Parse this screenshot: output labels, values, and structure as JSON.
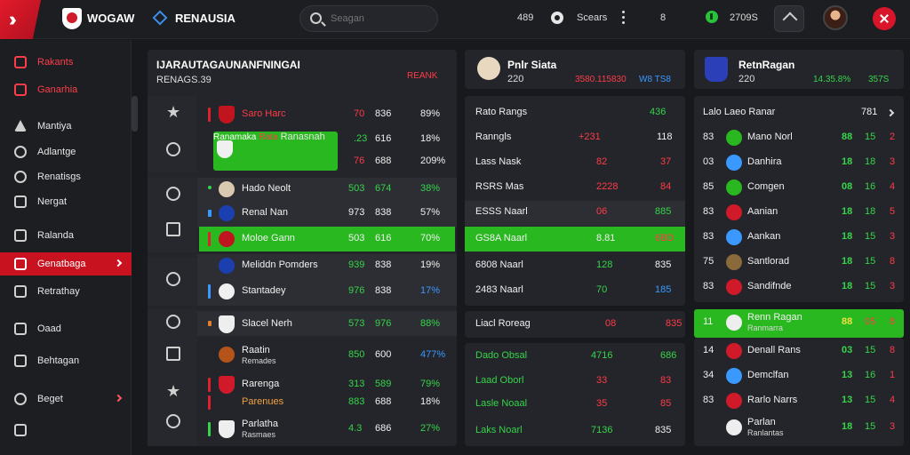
{
  "header": {
    "logo_text": "WOGAW",
    "nav_title": "RENAUSIA",
    "search_placeholder": "Seagan",
    "count": "489",
    "label": "Scears",
    "num": "8",
    "score": "2709S"
  },
  "sidebar": {
    "items": [
      {
        "label": "Rakants"
      },
      {
        "label": "Ganarhia"
      },
      {
        "label": "Mantiya"
      },
      {
        "label": "Adlantge"
      },
      {
        "label": "Renatisgs"
      },
      {
        "label": "Nergat"
      },
      {
        "label": "Ralanda"
      },
      {
        "label": "Genatbaga"
      },
      {
        "label": "Retrathay"
      },
      {
        "label": "Oaad"
      },
      {
        "label": "Behtagan"
      },
      {
        "label": "Beget"
      }
    ]
  },
  "main": {
    "title": "IJARAUTAGAUNANFNINGAI",
    "subtitle": "RENAGS.39",
    "tag": "REANK",
    "rows": [
      {
        "name": "Saro Harc",
        "a": "70",
        "b": "836",
        "c": "89%"
      },
      {
        "name": "Ranamaka",
        "line2": "Rata",
        "line3": "Ranasnah",
        "a": ".23",
        "b": "616",
        "c": "18%"
      },
      {
        "name": "",
        "a": "76",
        "b": "688",
        "c": "209%"
      },
      {
        "name": "Hado Neolt",
        "a": "503",
        "b": "674",
        "c": "38%"
      },
      {
        "name": "Renal Nan",
        "a": "973",
        "b": "838",
        "c": "57%"
      },
      {
        "name": "Moloe Gann",
        "a": "503",
        "b": "616",
        "c": "70%"
      },
      {
        "name": "Meliddn Pomders",
        "a": "939",
        "b": "838",
        "c": "19%"
      },
      {
        "name": "Stantadey",
        "a": "976",
        "b": "838",
        "c": "17%"
      },
      {
        "name": "Slacel Nerh",
        "a": "573",
        "b": "976",
        "c": "88%"
      },
      {
        "name": "Raatin",
        "sub": "Remades",
        "a": "850",
        "b": "600",
        "c": "477%"
      },
      {
        "name": "Rarenga",
        "a": "313",
        "b": "589",
        "c": "79%"
      },
      {
        "name": "Parenues",
        "a": "883",
        "b": "688",
        "c": "18%"
      },
      {
        "name": "Parlatha",
        "sub": "Rasmaes",
        "a": "4.3",
        "b": "686",
        "c": "27%"
      }
    ]
  },
  "middle": {
    "title": "Pnlr Siata",
    "sub": "220",
    "stat1": "3580.115830",
    "stat2": "W8 TS8",
    "rows": [
      {
        "name": "Rato Rangs",
        "a": "436",
        "b": ""
      },
      {
        "name": "Ranngls",
        "a": "+231",
        "b": "118"
      },
      {
        "name": "Lass  Nask",
        "a": "82",
        "b": "37"
      },
      {
        "name": "RSRS  Mas",
        "a": "2228",
        "b": "84"
      },
      {
        "name": "ESSS  Naarl",
        "a": "06",
        "b": "885"
      },
      {
        "name": "GS8A  Naarl",
        "a": "8.81",
        "b": "6BD"
      },
      {
        "name": "6808  Naarl",
        "a": "128",
        "b": "835"
      },
      {
        "name": "2483  Naarl",
        "a": "70",
        "b": "185"
      },
      {
        "name": "Liacl  Roreag",
        "a": "08",
        "b": "835"
      },
      {
        "name": "Dado  Obsal",
        "a": "4716",
        "b": "686"
      },
      {
        "name": "Laad  Oborl",
        "a": "33",
        "b": "83"
      },
      {
        "name": "Lasle  Noaal",
        "a": "35",
        "b": "85"
      },
      {
        "name": "Laks  Noarl",
        "a": "7136",
        "b": "835"
      }
    ]
  },
  "right": {
    "title": "RetnRagan",
    "sub": "220",
    "stat1": "14.35.8%",
    "stat2": "357S",
    "header_row": {
      "name": "Lalo Laeo Ranar",
      "val": "781"
    },
    "rows": [
      {
        "rank": "83",
        "name": "Mano Norl",
        "a": "88",
        "b": "15",
        "c": "2"
      },
      {
        "rank": "03",
        "name": "Danhira",
        "a": "18",
        "b": "18",
        "c": "3"
      },
      {
        "rank": "85",
        "name": "Comgen",
        "a": "08",
        "b": "16",
        "c": "4"
      },
      {
        "rank": "83",
        "name": "Aanian",
        "a": "18",
        "b": "18",
        "c": "5"
      },
      {
        "rank": "83",
        "name": "Aankan",
        "a": "18",
        "b": "15",
        "c": "3"
      },
      {
        "rank": "75",
        "name": "Santlorad",
        "a": "18",
        "b": "15",
        "c": "8"
      },
      {
        "rank": "83",
        "name": "Sandifnde",
        "a": "18",
        "b": "15",
        "c": "3"
      },
      {
        "rank": "11",
        "name": "Renn Ragan",
        "sub": "Ranmarra",
        "a": "88",
        "b": "05",
        "c": "8"
      },
      {
        "rank": "14",
        "name": "Denall Rans",
        "a": "03",
        "b": "15",
        "c": "8"
      },
      {
        "rank": "34",
        "name": "Demclfan",
        "a": "13",
        "b": "16",
        "c": "1"
      },
      {
        "rank": "83",
        "name": "Rarlo Narrs",
        "a": "13",
        "b": "15",
        "c": "4"
      },
      {
        "rank": "",
        "name": "Parlan",
        "sub": "Ranlantas",
        "a": "18",
        "b": "15",
        "c": "3"
      }
    ]
  },
  "colors": {
    "accent_red": "#c8121f",
    "accent_green": "#29b81f",
    "blue": "#3a98ff",
    "bg": "#17191d"
  }
}
